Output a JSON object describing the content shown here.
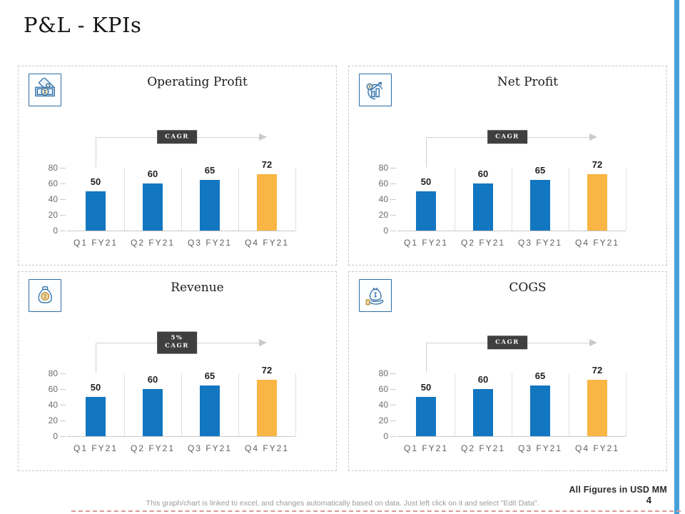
{
  "page": {
    "title": "P&L - KPIs",
    "figures_note": "All Figures in USD MM",
    "footer_note": "This graph/chart is linked to excel, and changes automatically based on data. Just left click on it and select \"Edit Data\".",
    "page_number": "4"
  },
  "colors": {
    "accent_strip": "#47a1d9",
    "bar_blue": "#1276c1",
    "bar_yellow": "#f9b644",
    "badge_bg": "#3f3f3f",
    "icon_border": "#2e6da4"
  },
  "chart_data": [
    {
      "type": "bar",
      "title": "Operating Profit",
      "icon": "money-bills-icon",
      "badge_lines": [
        "CAGR"
      ],
      "categories": [
        "Q1 FY21",
        "Q2 FY21",
        "Q3 FY21",
        "Q4 FY21"
      ],
      "values": [
        50,
        60,
        65,
        72
      ],
      "bar_colors": [
        "#1276c1",
        "#1276c1",
        "#1276c1",
        "#f9b644"
      ],
      "yticks": [
        80,
        60,
        40,
        20,
        0
      ],
      "ylim": [
        0,
        80
      ],
      "xlabel": "",
      "ylabel": "",
      "grid": "vertical-category-separators",
      "legend": "none"
    },
    {
      "type": "bar",
      "title": "Net Profit",
      "icon": "profit-growth-icon",
      "badge_lines": [
        "CAGR"
      ],
      "categories": [
        "Q1 FY21",
        "Q2 FY21",
        "Q3 FY21",
        "Q4 FY21"
      ],
      "values": [
        50,
        60,
        65,
        72
      ],
      "bar_colors": [
        "#1276c1",
        "#1276c1",
        "#1276c1",
        "#f9b644"
      ],
      "yticks": [
        80,
        60,
        40,
        20,
        0
      ],
      "ylim": [
        0,
        80
      ],
      "xlabel": "",
      "ylabel": "",
      "grid": "vertical-category-separators",
      "legend": "none"
    },
    {
      "type": "bar",
      "title": "Revenue",
      "icon": "money-bag-icon",
      "badge_lines": [
        "5%",
        "CAGR"
      ],
      "categories": [
        "Q1 FY21",
        "Q2 FY21",
        "Q3 FY21",
        "Q4 FY21"
      ],
      "values": [
        50,
        60,
        65,
        72
      ],
      "bar_colors": [
        "#1276c1",
        "#1276c1",
        "#1276c1",
        "#f9b644"
      ],
      "yticks": [
        80,
        60,
        40,
        20,
        0
      ],
      "ylim": [
        0,
        80
      ],
      "xlabel": "",
      "ylabel": "",
      "grid": "vertical-category-separators",
      "legend": "none"
    },
    {
      "type": "bar",
      "title": "COGS",
      "icon": "hand-money-bag-icon",
      "badge_lines": [
        "CAGR"
      ],
      "categories": [
        "Q1 FY21",
        "Q2 FY21",
        "Q3 FY21",
        "Q4 FY21"
      ],
      "values": [
        50,
        60,
        65,
        72
      ],
      "bar_colors": [
        "#1276c1",
        "#1276c1",
        "#1276c1",
        "#f9b644"
      ],
      "yticks": [
        80,
        60,
        40,
        20,
        0
      ],
      "ylim": [
        0,
        80
      ],
      "xlabel": "",
      "ylabel": "",
      "grid": "vertical-category-separators",
      "legend": "none"
    }
  ]
}
